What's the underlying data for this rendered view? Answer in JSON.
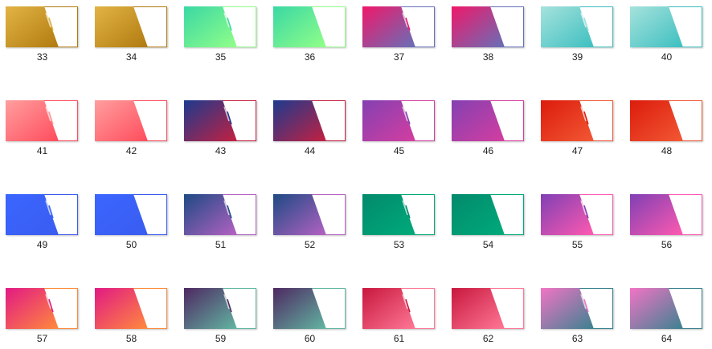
{
  "items": [
    {
      "label": "33",
      "colors": [
        "#e2b444",
        "#b07a10"
      ]
    },
    {
      "label": "34",
      "colors": [
        "#e2b444",
        "#b07a10"
      ]
    },
    {
      "label": "35",
      "colors": [
        "#3ad8a4",
        "#92ff88"
      ]
    },
    {
      "label": "36",
      "colors": [
        "#3ad8a4",
        "#92ff88"
      ]
    },
    {
      "label": "37",
      "colors": [
        "#f0186a",
        "#6670b8"
      ]
    },
    {
      "label": "38",
      "colors": [
        "#f0186a",
        "#6670b8"
      ]
    },
    {
      "label": "39",
      "colors": [
        "#a6e2dc",
        "#3cbfc0"
      ]
    },
    {
      "label": "40",
      "colors": [
        "#a6e2dc",
        "#3cbfc0"
      ]
    },
    {
      "label": "41",
      "colors": [
        "#ff9e9e",
        "#ff4c5c"
      ]
    },
    {
      "label": "42",
      "colors": [
        "#ff9e9e",
        "#ff4c5c"
      ]
    },
    {
      "label": "43",
      "colors": [
        "#1c3a8e",
        "#c42040"
      ]
    },
    {
      "label": "44",
      "colors": [
        "#1c3a8e",
        "#c42040"
      ]
    },
    {
      "label": "45",
      "colors": [
        "#8440b2",
        "#d43ea0"
      ]
    },
    {
      "label": "46",
      "colors": [
        "#8440b2",
        "#d43ea0"
      ]
    },
    {
      "label": "47",
      "colors": [
        "#dc1c0c",
        "#f25834"
      ]
    },
    {
      "label": "48",
      "colors": [
        "#dc1c0c",
        "#f25834"
      ]
    },
    {
      "label": "49",
      "colors": [
        "#3a66ff",
        "#3a5cf0"
      ]
    },
    {
      "label": "50",
      "colors": [
        "#3a66ff",
        "#3a5cf0"
      ]
    },
    {
      "label": "51",
      "colors": [
        "#1e4a84",
        "#b462c2"
      ]
    },
    {
      "label": "52",
      "colors": [
        "#1e4a84",
        "#b462c2"
      ]
    },
    {
      "label": "53",
      "colors": [
        "#028a6c",
        "#00aa7a"
      ]
    },
    {
      "label": "54",
      "colors": [
        "#028a6c",
        "#00aa7a"
      ]
    },
    {
      "label": "55",
      "colors": [
        "#8040b4",
        "#ff5ab0"
      ]
    },
    {
      "label": "56",
      "colors": [
        "#8040b4",
        "#ff5ab0"
      ]
    },
    {
      "label": "57",
      "colors": [
        "#e21a84",
        "#ff8a3c"
      ]
    },
    {
      "label": "58",
      "colors": [
        "#e21a84",
        "#ff8a3c"
      ]
    },
    {
      "label": "59",
      "colors": [
        "#4e2862",
        "#62b6a2"
      ]
    },
    {
      "label": "60",
      "colors": [
        "#4e2862",
        "#62b6a2"
      ]
    },
    {
      "label": "61",
      "colors": [
        "#c8183e",
        "#ff7896"
      ]
    },
    {
      "label": "62",
      "colors": [
        "#c8183e",
        "#ff7896"
      ]
    },
    {
      "label": "63",
      "colors": [
        "#f274c4",
        "#3a8290"
      ]
    },
    {
      "label": "64",
      "colors": [
        "#f274c4",
        "#3a8290"
      ]
    }
  ]
}
